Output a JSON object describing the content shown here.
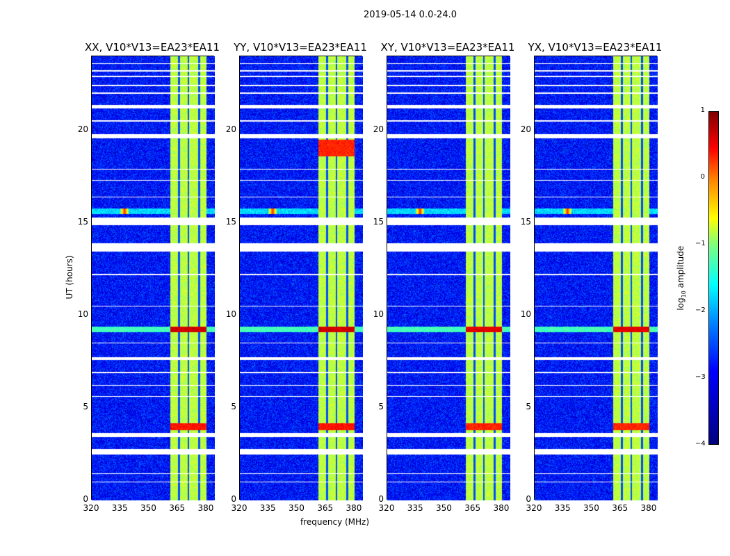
{
  "chart_data": {
    "type": "heatmap",
    "suptitle": "2019-05-14 0.0-24.0",
    "xlabel": "frequency (MHz)",
    "ylabel": "UT (hours)",
    "xlim": [
      320,
      384.4
    ],
    "ylim": [
      0,
      24
    ],
    "xticks": [
      "320",
      "335",
      "350",
      "365",
      "380"
    ],
    "yticks": [
      "0",
      "5",
      "10",
      "15",
      "20"
    ],
    "panels": [
      {
        "title": "XX, V10*V13=EA23*EA11",
        "strong_rows": [
          [
            3.8,
            4.2,
            0.3
          ],
          [
            9.1,
            9.4,
            0.6
          ]
        ]
      },
      {
        "title": "YY, V10*V13=EA23*EA11",
        "strong_rows": [
          [
            3.8,
            4.2,
            0.3
          ],
          [
            9.1,
            9.4,
            0.6
          ],
          [
            18.6,
            19.5,
            0.2
          ]
        ]
      },
      {
        "title": "XY, V10*V13=EA23*EA11",
        "strong_rows": [
          [
            3.8,
            4.2,
            0.2
          ],
          [
            9.1,
            9.4,
            0.5
          ]
        ]
      },
      {
        "title": "YX, V10*V13=EA23*EA11",
        "strong_rows": [
          [
            3.8,
            4.2,
            0.2
          ],
          [
            9.1,
            9.4,
            0.5
          ]
        ]
      }
    ],
    "background_log_amplitude": -3.3,
    "bright_band_MHz": [
      361,
      380
    ],
    "band_log_amplitude": -1.2,
    "band_gaps_MHz": [
      365.5,
      370.5,
      376
    ],
    "rfi_event": {
      "time_hours": [
        15.5,
        15.8
      ],
      "freq_MHz": 337,
      "log_amplitude": 0.2
    },
    "flagged_hours": [
      [
        2.5,
        2.8
      ],
      [
        3.45,
        3.65
      ],
      [
        7.6,
        7.75
      ],
      [
        13.45,
        13.9
      ],
      [
        14.9,
        15.3
      ],
      [
        19.6,
        19.8
      ],
      [
        21.2,
        21.4
      ],
      [
        1.0,
        1.05
      ],
      [
        1.45,
        1.5
      ],
      [
        5.6,
        5.65
      ],
      [
        6.2,
        6.25
      ],
      [
        6.9,
        6.95
      ],
      [
        8.5,
        8.55
      ],
      [
        10.5,
        10.55
      ],
      [
        12.2,
        12.25
      ],
      [
        16.4,
        16.45
      ],
      [
        17.3,
        17.35
      ],
      [
        17.9,
        17.95
      ],
      [
        20.5,
        20.55
      ],
      [
        22.0,
        22.08
      ],
      [
        22.4,
        22.48
      ],
      [
        22.9,
        22.95
      ],
      [
        23.2,
        23.25
      ],
      [
        23.6,
        23.65
      ]
    ],
    "colorbar": {
      "label": "log10 amplitude",
      "range": [
        -4,
        1
      ],
      "ticks": [
        "−4",
        "−3",
        "−2",
        "−1",
        "0",
        "1"
      ],
      "colormap": "jet"
    }
  }
}
